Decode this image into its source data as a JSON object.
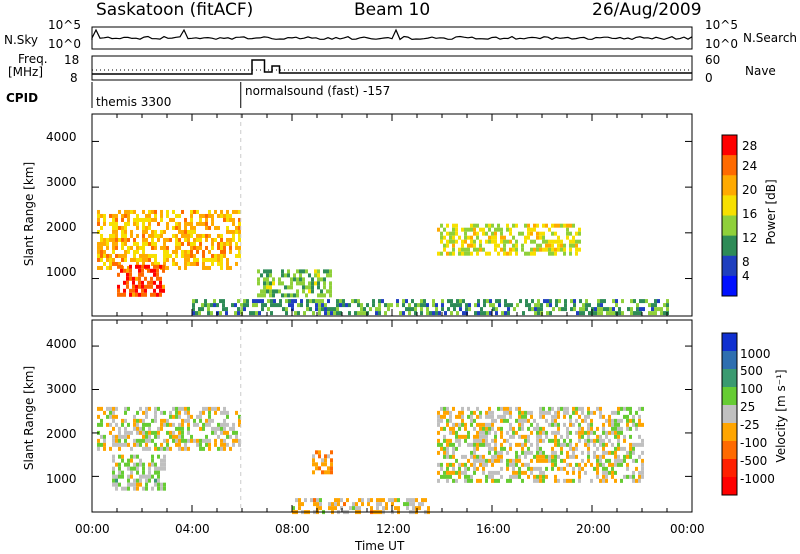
{
  "header": {
    "station": "Saskatoon (fitACF)",
    "beam": "Beam 10",
    "date": "26/Aug/2009"
  },
  "panel_labels": {
    "nsky": "N.Sky",
    "nsky_ticks": [
      "10^5",
      "10^0"
    ],
    "nsky_right_ticks": [
      "10^5",
      "10^0"
    ],
    "nsearch": "N.Search",
    "freq": "Freq.",
    "freq_unit": "[MHz]",
    "freq_ticks": [
      "18",
      "8"
    ],
    "nave_ticks": [
      "60",
      "0"
    ],
    "nave": "Nave",
    "cpid": "CPID",
    "cpid_1": "themis 3300",
    "cpid_2": "normalsound (fast) -157"
  },
  "colorbars": {
    "power": {
      "label": "Power [dB]",
      "ticks": [
        "28",
        "24",
        "20",
        "16",
        "12",
        "8",
        "4"
      ],
      "colors": [
        "#ff0000",
        "#ff6a00",
        "#ffaa00",
        "#f7e000",
        "#8fd03a",
        "#2e8b57",
        "#1f3fbf",
        "#0010ff"
      ]
    },
    "velocity": {
      "label": "Velocity [m s⁻¹]",
      "ticks": [
        "1000",
        "500",
        "100",
        "25",
        "-25",
        "-100",
        "-500",
        "-1000"
      ],
      "colors": [
        "#1030d0",
        "#2e6fb0",
        "#3a9a70",
        "#66cc33",
        "#c0c0c0",
        "#ffa500",
        "#ff6a00",
        "#ff2000",
        "#ff0000"
      ]
    }
  },
  "axes": {
    "ylabel": "Slant Range [km]",
    "xlabel": "Time UT",
    "xticks": [
      "00:00",
      "04:00",
      "08:00",
      "12:00",
      "16:00",
      "20:00",
      "00:00"
    ],
    "yticks": [
      "4000",
      "3000",
      "2000",
      "1000"
    ]
  },
  "chart_data": [
    {
      "type": "heatmap",
      "title": "",
      "xlabel": "Time UT",
      "ylabel": "Slant Range [km]",
      "xlim": [
        "00:00",
        "24:00"
      ],
      "ylim": [
        180,
        4600
      ],
      "colorbar": {
        "label": "Power [dB]",
        "range": [
          0,
          30
        ]
      },
      "regions": [
        {
          "t0": 0.2,
          "t1": 5.9,
          "r0": 1200,
          "r1": 2500,
          "value": 20
        },
        {
          "t0": 1.0,
          "t1": 2.9,
          "r0": 600,
          "r1": 1300,
          "value": 26
        },
        {
          "t0": 6.6,
          "t1": 9.6,
          "r0": 600,
          "r1": 1200,
          "value": 12
        },
        {
          "t0": 13.8,
          "t1": 19.5,
          "r0": 1500,
          "r1": 2200,
          "value": 16
        },
        {
          "t0": 4.0,
          "t1": 23.0,
          "r0": 200,
          "r1": 550,
          "value": 10
        }
      ]
    },
    {
      "type": "heatmap",
      "title": "",
      "xlabel": "Time UT",
      "ylabel": "Slant Range [km]",
      "xlim": [
        "00:00",
        "24:00"
      ],
      "ylim": [
        180,
        4600
      ],
      "colorbar": {
        "label": "Velocity [m s⁻¹]",
        "range": [
          -1000,
          1000
        ]
      },
      "regions": [
        {
          "t0": 0.2,
          "t1": 5.9,
          "r0": 1600,
          "r1": 2600,
          "value": 0
        },
        {
          "t0": 0.8,
          "t1": 2.9,
          "r0": 700,
          "r1": 1500,
          "value": 100
        },
        {
          "t0": 8.8,
          "t1": 9.6,
          "r0": 1100,
          "r1": 1600,
          "value": -300
        },
        {
          "t0": 8.0,
          "t1": 13.5,
          "r0": 200,
          "r1": 500,
          "value": -100
        },
        {
          "t0": 13.8,
          "t1": 22.0,
          "r0": 900,
          "r1": 2600,
          "value": 0
        }
      ]
    }
  ]
}
